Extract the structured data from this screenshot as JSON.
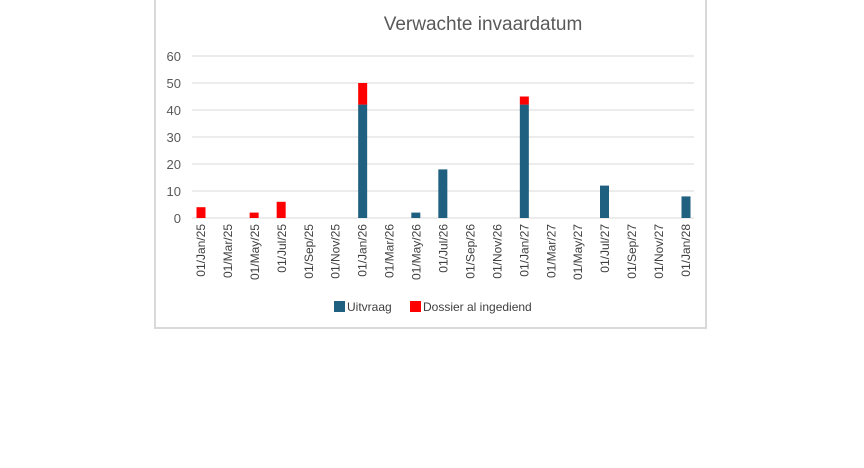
{
  "chart_data": {
    "type": "bar",
    "stacked": true,
    "title": "Verwachte invaardatum",
    "xlabel": "",
    "ylabel": "",
    "ylim": [
      0,
      60
    ],
    "yticks": [
      0,
      10,
      20,
      30,
      40,
      50,
      60
    ],
    "grid": true,
    "legend_position": "bottom",
    "x_tick_labels": [
      "01/Jan/25",
      "01/Mar/25",
      "01/May/25",
      "01/Jul/25",
      "01/Sep/25",
      "01/Nov/25",
      "01/Jan/26",
      "01/Mar/26",
      "01/May/26",
      "01/Jul/26",
      "01/Sep/26",
      "01/Nov/26",
      "01/Jan/27",
      "01/Mar/27",
      "01/May/27",
      "01/Jul/27",
      "01/Sep/27",
      "01/Nov/27",
      "01/Jan/28"
    ],
    "x_start": "2025-01-01",
    "x_end": "2028-01-01",
    "series": [
      {
        "name": "Uitvraag",
        "color": "#1f5f7f",
        "points": [
          {
            "x": "2025-01-01",
            "y": 0
          },
          {
            "x": "2025-05-01",
            "y": 0
          },
          {
            "x": "2025-07-01",
            "y": 0
          },
          {
            "x": "2026-01-01",
            "y": 42
          },
          {
            "x": "2026-05-01",
            "y": 2
          },
          {
            "x": "2026-07-01",
            "y": 18
          },
          {
            "x": "2027-01-01",
            "y": 42
          },
          {
            "x": "2027-07-01",
            "y": 12
          },
          {
            "x": "2028-01-01",
            "y": 8
          }
        ]
      },
      {
        "name": "Dossier al ingediend",
        "color": "#ff0000",
        "points": [
          {
            "x": "2025-01-01",
            "y": 4
          },
          {
            "x": "2025-05-01",
            "y": 2
          },
          {
            "x": "2025-07-01",
            "y": 6
          },
          {
            "x": "2026-01-01",
            "y": 8
          },
          {
            "x": "2026-05-01",
            "y": 0
          },
          {
            "x": "2026-07-01",
            "y": 0
          },
          {
            "x": "2027-01-01",
            "y": 3
          },
          {
            "x": "2027-07-01",
            "y": 0
          },
          {
            "x": "2028-01-01",
            "y": 0
          }
        ]
      }
    ]
  }
}
